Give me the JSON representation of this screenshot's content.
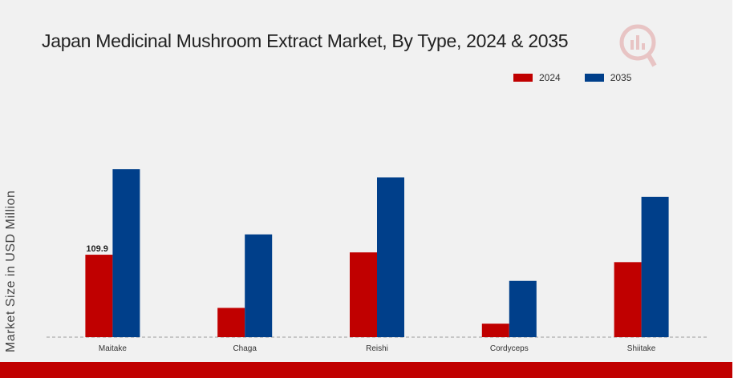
{
  "title": "Japan Medicinal Mushroom Extract Market, By Type, 2024 & 2035",
  "colors": {
    "series_2024": "#c00000",
    "series_2035": "#003f8a",
    "accent_bar": "#c00000",
    "background": "#f1f1f1"
  },
  "chart_data": {
    "type": "bar",
    "title": "Japan Medicinal Mushroom Extract Market, By Type, 2024 & 2035",
    "xlabel": "",
    "ylabel": "Market Size in USD Million",
    "categories": [
      "Maitake",
      "Chaga",
      "Reishi",
      "Cordyceps",
      "Shiitake"
    ],
    "series": [
      {
        "name": "2024",
        "color": "#c00000",
        "values": [
          109.9,
          39.0,
          113.0,
          18.0,
          100.0
        ]
      },
      {
        "name": "2035",
        "color": "#003f8a",
        "values": [
          224.0,
          137.0,
          213.0,
          75.0,
          187.0
        ]
      }
    ],
    "data_labels": [
      {
        "series": "2024",
        "category": "Maitake",
        "text": "109.9"
      }
    ],
    "ylim": [
      0,
      300
    ],
    "grid": false,
    "legend": "top-right"
  }
}
